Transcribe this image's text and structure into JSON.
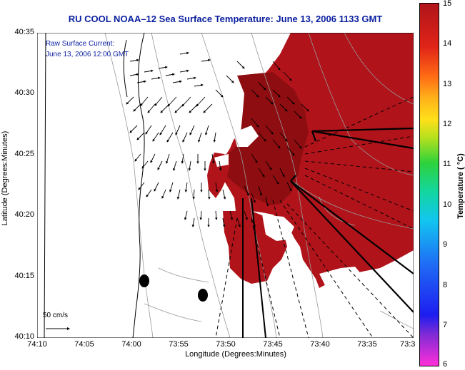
{
  "title": "RU COOL  NOAA–12  Sea Surface Temperature:  June 13, 2006 1133 GMT",
  "annotation": {
    "line1": "Raw Surface Current:",
    "line2": "June 13, 2006 12:00 GMT"
  },
  "scale_label": "50 cm/s",
  "axes": {
    "xlabel": "Longitude (Degrees:Minutes)",
    "ylabel": "Latitude (Degrees:Minutes)",
    "x_ticks": [
      "74:10",
      "74:05",
      "74:00",
      "73:55",
      "73:50",
      "73:45",
      "73:40",
      "73:35",
      "73:3"
    ],
    "y_ticks": [
      "40:35",
      "40:30",
      "40:25",
      "40:20",
      "40:15",
      "40:10"
    ]
  },
  "colorbar": {
    "label": "Temperature ( °C)",
    "ticks": [
      "15",
      "14",
      "13",
      "12",
      "11",
      "10",
      "9",
      "8",
      "7",
      "6"
    ],
    "range": [
      6,
      15
    ]
  },
  "colors": {
    "title_blue": "#0a1fa0",
    "sst_red": "#b0141a",
    "sst_dark_red": "#8e0d10"
  }
}
